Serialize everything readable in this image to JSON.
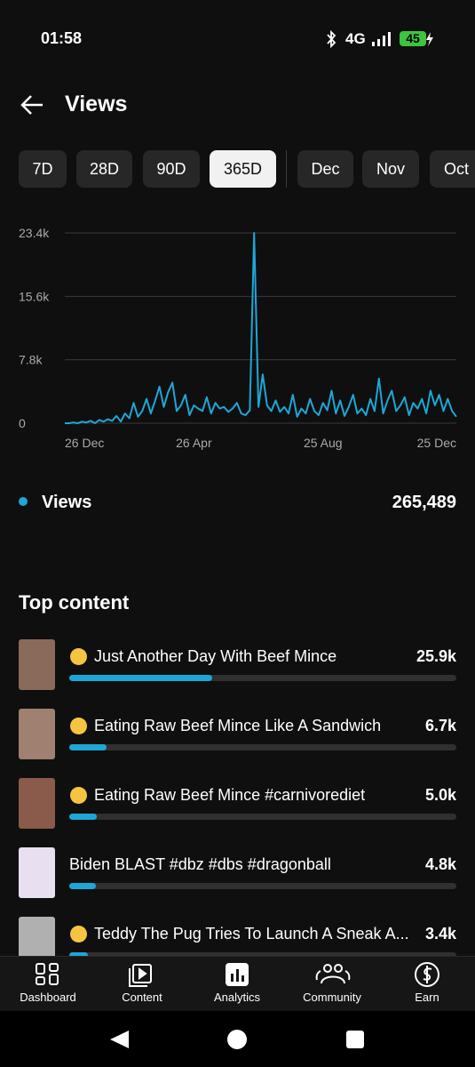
{
  "status_bar": {
    "time": "01:58",
    "network": "4G",
    "battery": "45"
  },
  "header": {
    "title": "Views"
  },
  "chips": [
    "7D",
    "28D",
    "90D",
    "365D",
    "Dec",
    "Nov",
    "Oct"
  ],
  "selected_chip": 3,
  "chart_data": {
    "type": "line",
    "categories": [
      "26 Dec",
      null,
      null,
      null,
      null,
      null,
      null,
      null,
      null,
      null,
      null,
      null,
      null,
      null,
      null,
      null,
      null,
      null,
      null,
      null,
      null,
      null,
      null,
      null,
      null,
      null,
      null,
      null,
      null,
      null,
      "26 Apr",
      null,
      null,
      null,
      null,
      null,
      null,
      null,
      null,
      null,
      null,
      null,
      null,
      null,
      null,
      null,
      null,
      null,
      null,
      null,
      null,
      null,
      null,
      null,
      null,
      null,
      null,
      null,
      null,
      null,
      "25 Aug",
      null,
      null,
      null,
      null,
      null,
      null,
      null,
      null,
      null,
      null,
      null,
      null,
      null,
      null,
      null,
      null,
      null,
      null,
      null,
      null,
      null,
      null,
      null,
      null,
      null,
      null,
      null,
      null,
      null,
      null,
      "25 Dec"
    ],
    "series": [
      {
        "name": "Views",
        "color": "#1ea7d6",
        "values": [
          0,
          0,
          100,
          0,
          200,
          100,
          300,
          0,
          400,
          200,
          500,
          300,
          900,
          200,
          1200,
          600,
          2500,
          800,
          1500,
          3000,
          1200,
          2800,
          4500,
          2000,
          3800,
          5000,
          1500,
          2200,
          3500,
          1000,
          2200,
          1800,
          1500,
          3200,
          1200,
          2500,
          1800,
          2000,
          1400,
          1800,
          2500,
          1200,
          1000,
          1600,
          23400,
          2000,
          6000,
          2200,
          1500,
          2800,
          1400,
          2000,
          1200,
          3500,
          800,
          1800,
          1200,
          3000,
          1500,
          1000,
          2500,
          1600,
          4000,
          1200,
          2800,
          900,
          2000,
          3500,
          1200,
          1800,
          1000,
          3000,
          1500,
          5500,
          1200,
          2800,
          4000,
          1500,
          2200,
          3200,
          1000,
          2500,
          1800,
          3000,
          1200,
          4000,
          2200,
          3500,
          1500,
          3000,
          1500,
          800
        ]
      }
    ],
    "ylim": [
      0,
      23400
    ],
    "yticks": [
      0,
      {
        "value": 7800,
        "label": "7.8k"
      },
      {
        "value": 15600,
        "label": "15.6k"
      },
      {
        "value": 23400,
        "label": "23.4k"
      }
    ],
    "grid": true,
    "total": "265,489"
  },
  "top_content": {
    "title": "Top content",
    "xlim": [
      0,
      70000
    ],
    "items": [
      {
        "title": "Just Another Day With Beef Mince",
        "value": 25900,
        "value_label": "25.9k"
      },
      {
        "title": "Eating Raw Beef Mince Like A Sandwich",
        "value": 6700,
        "value_label": "6.7k"
      },
      {
        "title": "Eating Raw Beef Mince #carnivorediet",
        "value": 5000,
        "value_label": "5.0k"
      },
      {
        "title": "Biden BLAST #dbz #dbs #dragonball",
        "value": 4800,
        "value_label": "4.8k"
      },
      {
        "title": "Teddy The Pug Tries To Launch A Sneak A...",
        "value": 3400,
        "value_label": "3.4k"
      }
    ]
  },
  "bottom_nav": [
    "Dashboard",
    "Content",
    "Analytics",
    "Community",
    "Earn"
  ]
}
